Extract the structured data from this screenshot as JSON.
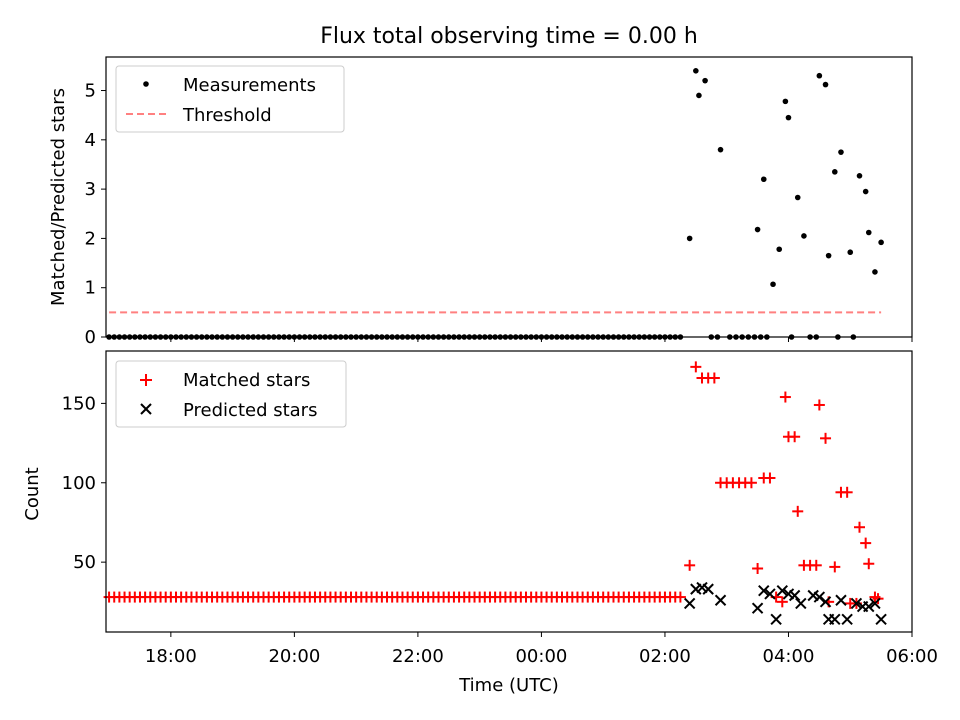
{
  "figure": {
    "title": "Flux total observing time = 0.00 h",
    "xlabel": "Time (UTC)",
    "xtick_labels": [
      "18:00",
      "20:00",
      "22:00",
      "00:00",
      "02:00",
      "04:00",
      "06:00"
    ]
  },
  "colors": {
    "measurements": "#000000",
    "threshold": "#ff8080",
    "matched": "#ff0000",
    "predicted": "#000000"
  },
  "chart_data": [
    {
      "type": "scatter",
      "panel": "top",
      "ylabel": "Matched/Predicted stars",
      "ytick_labels": [
        "0",
        "1",
        "2",
        "3",
        "4",
        "5"
      ],
      "xlim_hours": [
        16.95,
        30.0
      ],
      "ylim": [
        0,
        5.68
      ],
      "legend_position": "top-left",
      "legend": {
        "measurements": "Measurements",
        "threshold": "Threshold"
      },
      "measurements": {
        "zero_range_hours": [
          17.0,
          26.3
        ],
        "zero_step_minutes": 5,
        "extra_zero_hours": [
          26.75,
          26.85,
          27.05,
          27.15,
          27.25,
          27.35,
          27.45,
          27.55,
          27.65,
          28.05,
          28.35,
          28.45,
          28.8,
          29.05
        ],
        "points": [
          {
            "t": 26.4,
            "v": 2.0
          },
          {
            "t": 26.5,
            "v": 5.4
          },
          {
            "t": 26.55,
            "v": 4.9
          },
          {
            "t": 26.65,
            "v": 5.2
          },
          {
            "t": 26.9,
            "v": 3.8
          },
          {
            "t": 27.5,
            "v": 2.18
          },
          {
            "t": 27.6,
            "v": 3.2
          },
          {
            "t": 27.75,
            "v": 1.07
          },
          {
            "t": 27.85,
            "v": 1.78
          },
          {
            "t": 27.95,
            "v": 4.78
          },
          {
            "t": 28.0,
            "v": 4.45
          },
          {
            "t": 28.15,
            "v": 2.83
          },
          {
            "t": 28.25,
            "v": 2.05
          },
          {
            "t": 28.5,
            "v": 5.3
          },
          {
            "t": 28.6,
            "v": 5.12
          },
          {
            "t": 28.65,
            "v": 1.65
          },
          {
            "t": 28.75,
            "v": 3.35
          },
          {
            "t": 28.85,
            "v": 3.75
          },
          {
            "t": 29.0,
            "v": 1.72
          },
          {
            "t": 29.15,
            "v": 3.27
          },
          {
            "t": 29.25,
            "v": 2.95
          },
          {
            "t": 29.3,
            "v": 2.12
          },
          {
            "t": 29.4,
            "v": 1.32
          },
          {
            "t": 29.5,
            "v": 1.92
          }
        ]
      },
      "threshold": {
        "value": 0.5,
        "start_hours": 17.0,
        "end_hours": 29.5
      }
    },
    {
      "type": "scatter",
      "panel": "bottom",
      "ylabel": "Count",
      "ytick_labels": [
        "50",
        "100",
        "150"
      ],
      "xlim_hours": [
        16.95,
        30.0
      ],
      "ylim": [
        6,
        183
      ],
      "legend_position": "top-left",
      "legend": {
        "matched": "Matched stars",
        "predicted": "Predicted stars"
      },
      "matched": {
        "baseline_value": 28,
        "baseline_range_hours": [
          17.0,
          26.3
        ],
        "baseline_step_minutes": 5,
        "points": [
          {
            "t": 26.4,
            "v": 48
          },
          {
            "t": 26.5,
            "v": 173
          },
          {
            "t": 26.6,
            "v": 166
          },
          {
            "t": 26.7,
            "v": 166
          },
          {
            "t": 26.8,
            "v": 166
          },
          {
            "t": 26.9,
            "v": 100
          },
          {
            "t": 27.0,
            "v": 100
          },
          {
            "t": 27.1,
            "v": 100
          },
          {
            "t": 27.2,
            "v": 100
          },
          {
            "t": 27.3,
            "v": 100
          },
          {
            "t": 27.4,
            "v": 100
          },
          {
            "t": 27.5,
            "v": 46
          },
          {
            "t": 27.6,
            "v": 103
          },
          {
            "t": 27.7,
            "v": 103
          },
          {
            "t": 27.8,
            "v": 28
          },
          {
            "t": 27.9,
            "v": 25
          },
          {
            "t": 27.95,
            "v": 154
          },
          {
            "t": 28.0,
            "v": 129
          },
          {
            "t": 28.1,
            "v": 129
          },
          {
            "t": 28.15,
            "v": 82
          },
          {
            "t": 28.25,
            "v": 48
          },
          {
            "t": 28.35,
            "v": 48
          },
          {
            "t": 28.45,
            "v": 48
          },
          {
            "t": 28.5,
            "v": 149
          },
          {
            "t": 28.6,
            "v": 128
          },
          {
            "t": 28.65,
            "v": 25
          },
          {
            "t": 28.75,
            "v": 47
          },
          {
            "t": 28.85,
            "v": 94
          },
          {
            "t": 28.95,
            "v": 94
          },
          {
            "t": 29.0,
            "v": 24
          },
          {
            "t": 29.1,
            "v": 24
          },
          {
            "t": 29.15,
            "v": 72
          },
          {
            "t": 29.25,
            "v": 62
          },
          {
            "t": 29.3,
            "v": 49
          },
          {
            "t": 29.4,
            "v": 28
          },
          {
            "t": 29.45,
            "v": 27
          }
        ]
      },
      "predicted": {
        "points": [
          {
            "t": 26.4,
            "v": 24
          },
          {
            "t": 26.5,
            "v": 33
          },
          {
            "t": 26.6,
            "v": 34
          },
          {
            "t": 26.7,
            "v": 33
          },
          {
            "t": 26.9,
            "v": 26
          },
          {
            "t": 27.5,
            "v": 21
          },
          {
            "t": 27.6,
            "v": 32
          },
          {
            "t": 27.7,
            "v": 30
          },
          {
            "t": 27.8,
            "v": 14
          },
          {
            "t": 27.9,
            "v": 32
          },
          {
            "t": 28.0,
            "v": 30
          },
          {
            "t": 28.1,
            "v": 29
          },
          {
            "t": 28.2,
            "v": 24
          },
          {
            "t": 28.4,
            "v": 29
          },
          {
            "t": 28.5,
            "v": 28
          },
          {
            "t": 28.6,
            "v": 25
          },
          {
            "t": 28.65,
            "v": 14
          },
          {
            "t": 28.75,
            "v": 14
          },
          {
            "t": 28.85,
            "v": 26
          },
          {
            "t": 28.95,
            "v": 14
          },
          {
            "t": 29.1,
            "v": 24
          },
          {
            "t": 29.2,
            "v": 22
          },
          {
            "t": 29.3,
            "v": 22
          },
          {
            "t": 29.4,
            "v": 24
          },
          {
            "t": 29.5,
            "v": 14
          }
        ]
      }
    }
  ]
}
